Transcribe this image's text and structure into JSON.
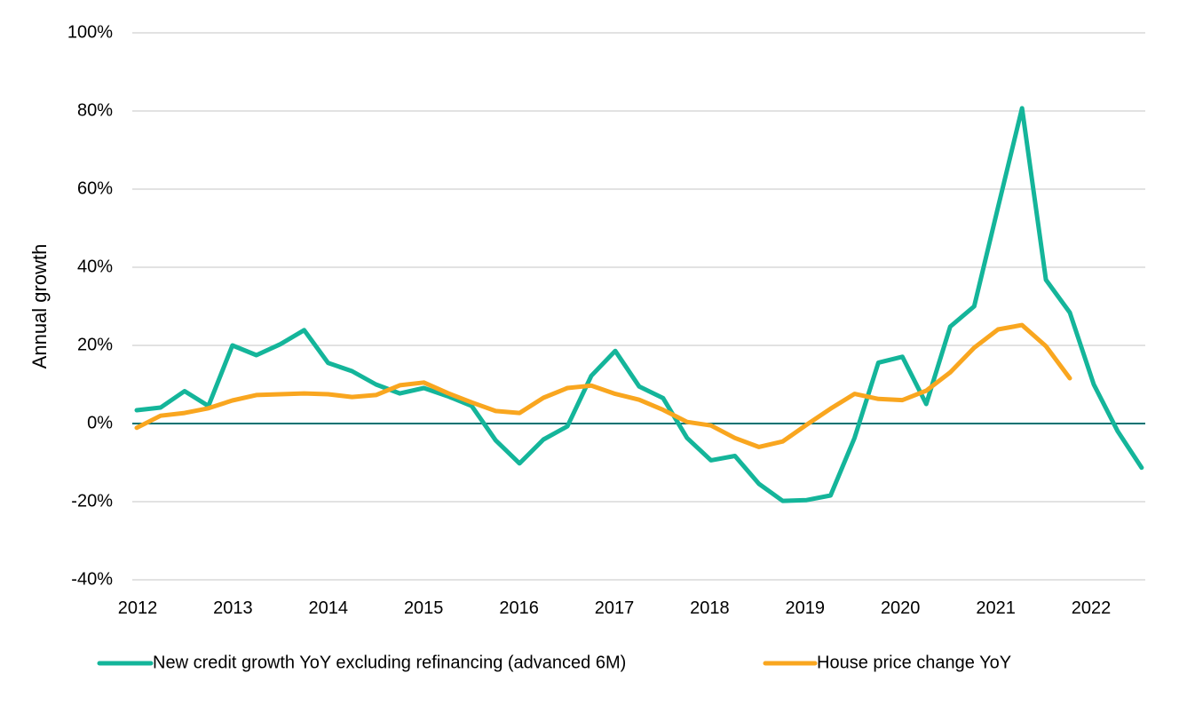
{
  "chart_data": {
    "type": "line",
    "title": "",
    "xlabel": "",
    "ylabel": "Annual growth",
    "ylim": [
      -40,
      100
    ],
    "yticks": [
      -40,
      -20,
      0,
      20,
      40,
      60,
      80,
      100
    ],
    "ytick_labels": [
      "-40%",
      "-20%",
      "0%",
      "20%",
      "40%",
      "60%",
      "80%",
      "100%"
    ],
    "xtick_labels": [
      "2012",
      "2013",
      "2014",
      "2015",
      "2016",
      "2017",
      "2018",
      "2019",
      "2020",
      "2021",
      "2022"
    ],
    "frequency": "quarterly",
    "x_start": "2012Q1",
    "grid": true,
    "legend_position": "bottom",
    "series": [
      {
        "name": "New credit growth YoY excluding refinancing (advanced 6M)",
        "color": "#14b59a",
        "values": [
          3.4,
          4.1,
          8.3,
          4.5,
          20.0,
          17.5,
          20.3,
          23.9,
          15.5,
          13.4,
          10.0,
          7.7,
          9.1,
          7.0,
          4.5,
          -4.3,
          -10.2,
          -4.1,
          -0.7,
          12.2,
          18.6,
          9.5,
          6.5,
          -3.7,
          -9.4,
          -8.3,
          -15.4,
          -19.8,
          -19.6,
          -18.4,
          -3.7,
          15.6,
          17.1,
          5.0,
          24.8,
          30.0,
          55.4,
          80.7,
          36.8,
          28.4,
          10.0,
          -2.0,
          -11.3
        ]
      },
      {
        "name": "House price change YoY",
        "color": "#f9a61f",
        "values": [
          -1.1,
          2.0,
          2.7,
          3.9,
          5.9,
          7.3,
          7.5,
          7.7,
          7.5,
          6.8,
          7.3,
          9.8,
          10.5,
          7.8,
          5.4,
          3.2,
          2.7,
          6.6,
          9.1,
          9.7,
          7.6,
          6.1,
          3.5,
          0.4,
          -0.5,
          -3.7,
          -6.0,
          -4.6,
          -0.3,
          3.8,
          7.6,
          6.3,
          6.0,
          8.4,
          13.1,
          19.4,
          24.1,
          25.2,
          19.8,
          11.6
        ]
      }
    ],
    "zero_line_color": "#007272",
    "grid_color": "#d9d9d9"
  }
}
